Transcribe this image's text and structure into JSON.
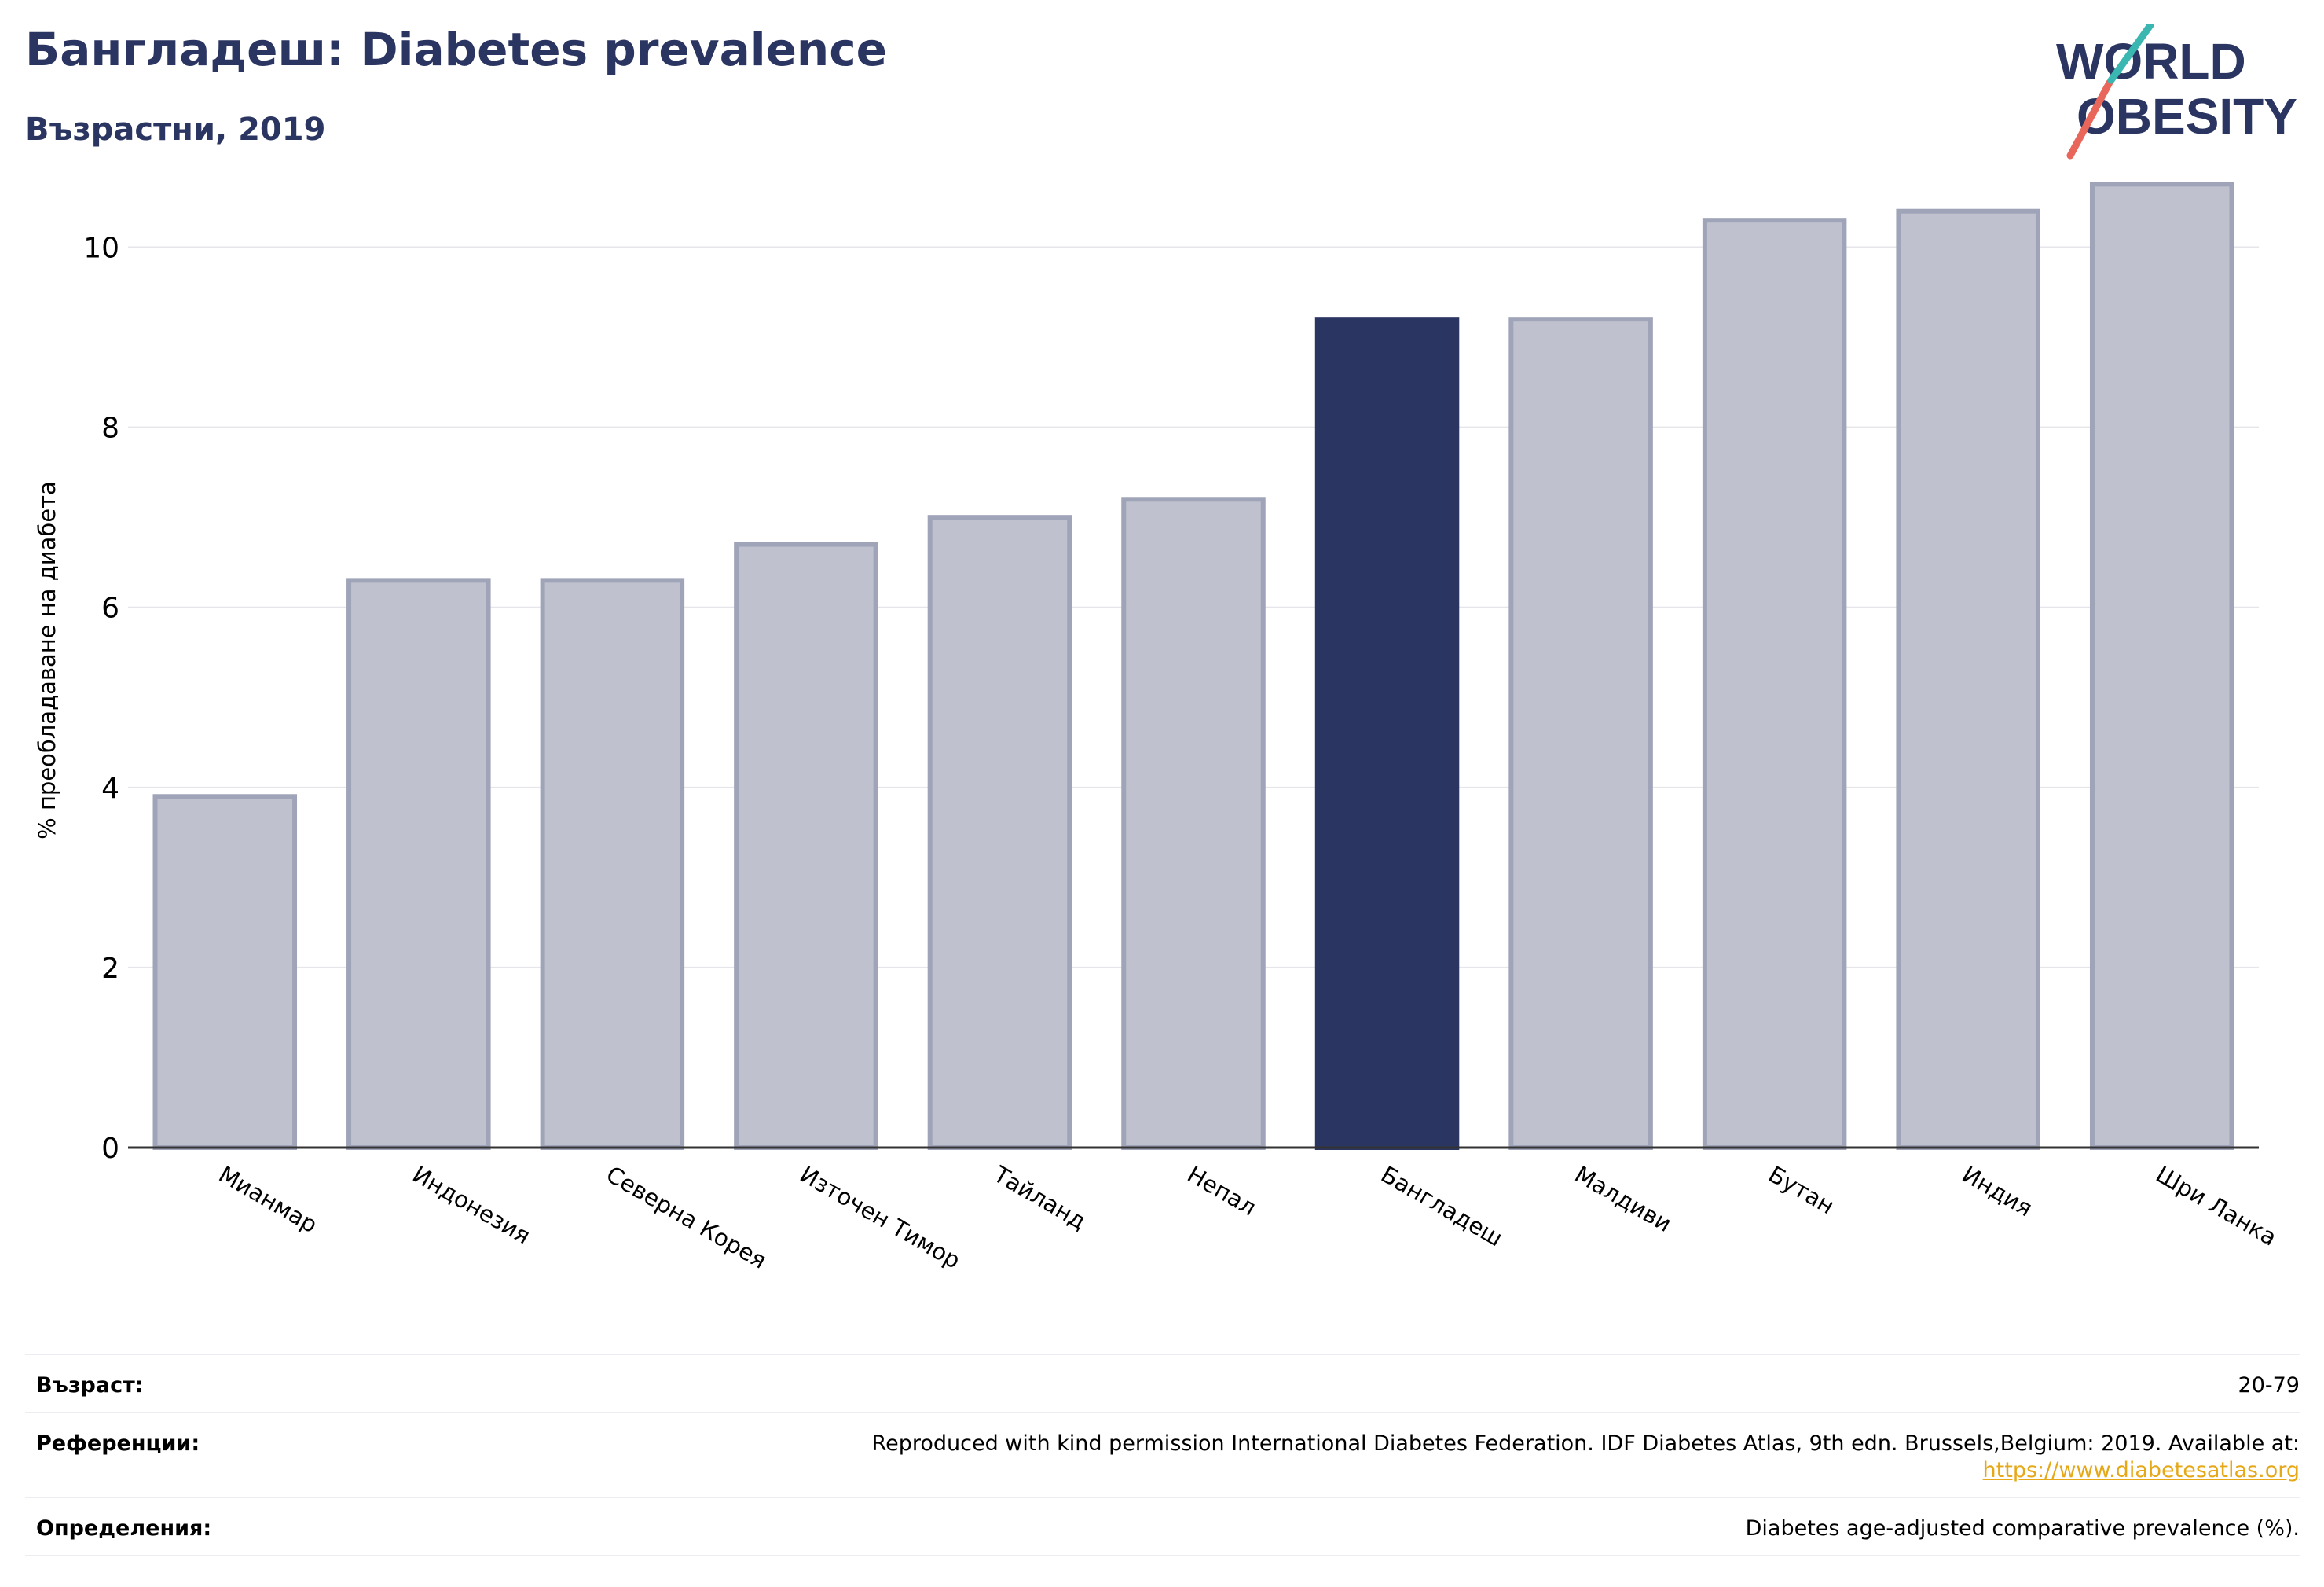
{
  "header": {
    "title": "Бангладеш: Diabetes prevalence",
    "subtitle": "Възрастни, 2019"
  },
  "logo": {
    "line1": "WORLD",
    "line2": "OBESITY"
  },
  "colors": {
    "highlight": "#2b3561",
    "bar": "#bfc2ce",
    "bar_border": "#9fa4b8",
    "text": "#2b3561"
  },
  "chart_data": {
    "type": "bar",
    "categories": [
      "Мианмар",
      "Индонезия",
      "Северна Корея",
      "Източен Тимор",
      "Тайланд",
      "Непал",
      "Бангладеш",
      "Малдиви",
      "Бутан",
      "Индия",
      "Шри Ланка"
    ],
    "values": [
      3.9,
      6.3,
      6.3,
      6.7,
      7.0,
      7.2,
      9.2,
      9.2,
      10.3,
      10.4,
      10.7
    ],
    "highlight": "Бангладеш",
    "ylabel": "% преобладаване на диабета",
    "xlabel": "",
    "yticks": [
      0,
      2,
      4,
      6,
      8,
      10
    ],
    "ylim": [
      0,
      11
    ],
    "grid": true
  },
  "footer": {
    "age_label": "Възраст:",
    "age_value": "20-79",
    "ref_label": "Референции:",
    "ref_text": "Reproduced with kind permission International Diabetes Federation. IDF Diabetes Atlas, 9th edn. Brussels,Belgium: 2019. Available at:",
    "ref_link": "https://www.diabetesatlas.org",
    "def_label": "Определения:",
    "def_value": "Diabetes age-adjusted comparative prevalence (%)."
  }
}
